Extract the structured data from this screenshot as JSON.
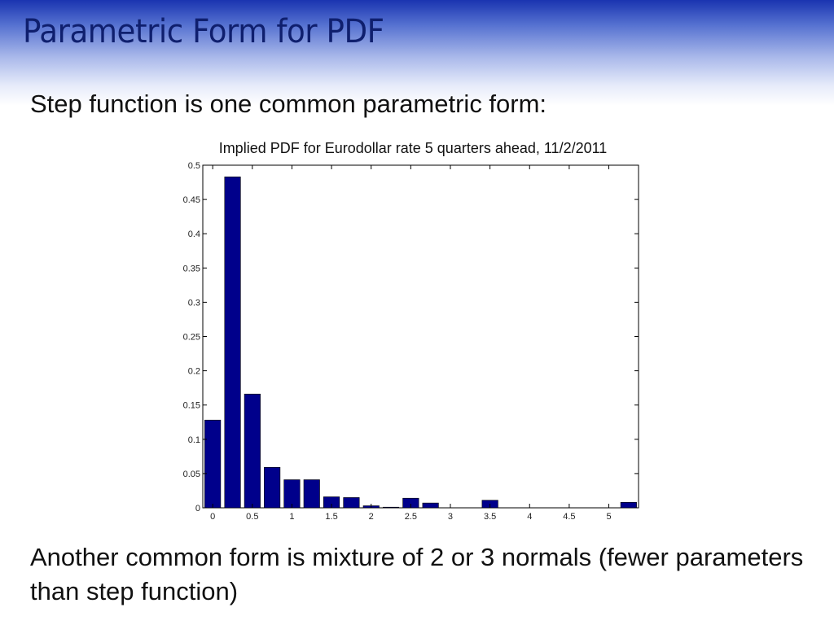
{
  "slide": {
    "title": "Parametric Form for PDF",
    "bullet_1": "Step function is one common parametric form:",
    "bullet_2": "Another common form is mixture of 2 or 3 normals (fewer parameters than step function)"
  },
  "colors": {
    "title": "#0f1f6e",
    "bar_fill": "#00008b",
    "header_gradient_top": "#1a34b0"
  },
  "chart_data": {
    "type": "bar",
    "title": "Implied PDF for Eurodollar rate 5 quarters ahead, 11/2/2011",
    "xlabel": "",
    "ylabel": "",
    "xlim": [
      -0.125,
      5.375
    ],
    "ylim": [
      0,
      0.5
    ],
    "grid": false,
    "x_ticks": [
      0,
      0.5,
      1,
      1.5,
      2,
      2.5,
      3,
      3.5,
      4,
      4.5,
      5
    ],
    "x_tick_labels": [
      "0",
      "0.5",
      "1",
      "1.5",
      "2",
      "2.5",
      "3",
      "3.5",
      "4",
      "4.5",
      "5"
    ],
    "y_ticks": [
      0,
      0.05,
      0.1,
      0.15,
      0.2,
      0.25,
      0.3,
      0.35,
      0.4,
      0.45,
      0.5
    ],
    "y_tick_labels": [
      "0",
      "0.05",
      "0.1",
      "0.15",
      "0.2",
      "0.25",
      "0.3",
      "0.35",
      "0.4",
      "0.45",
      "0.5"
    ],
    "x": [
      0,
      0.25,
      0.5,
      0.75,
      1,
      1.25,
      1.5,
      1.75,
      2,
      2.25,
      2.5,
      2.75,
      3,
      3.25,
      3.5,
      3.75,
      4,
      4.25,
      4.5,
      4.75,
      5,
      5.25
    ],
    "values": [
      0.128,
      0.483,
      0.166,
      0.059,
      0.041,
      0.041,
      0.016,
      0.015,
      0.003,
      0.001,
      0.014,
      0.007,
      0,
      0,
      0.011,
      0,
      0,
      0,
      0,
      0,
      0,
      0.008
    ]
  }
}
